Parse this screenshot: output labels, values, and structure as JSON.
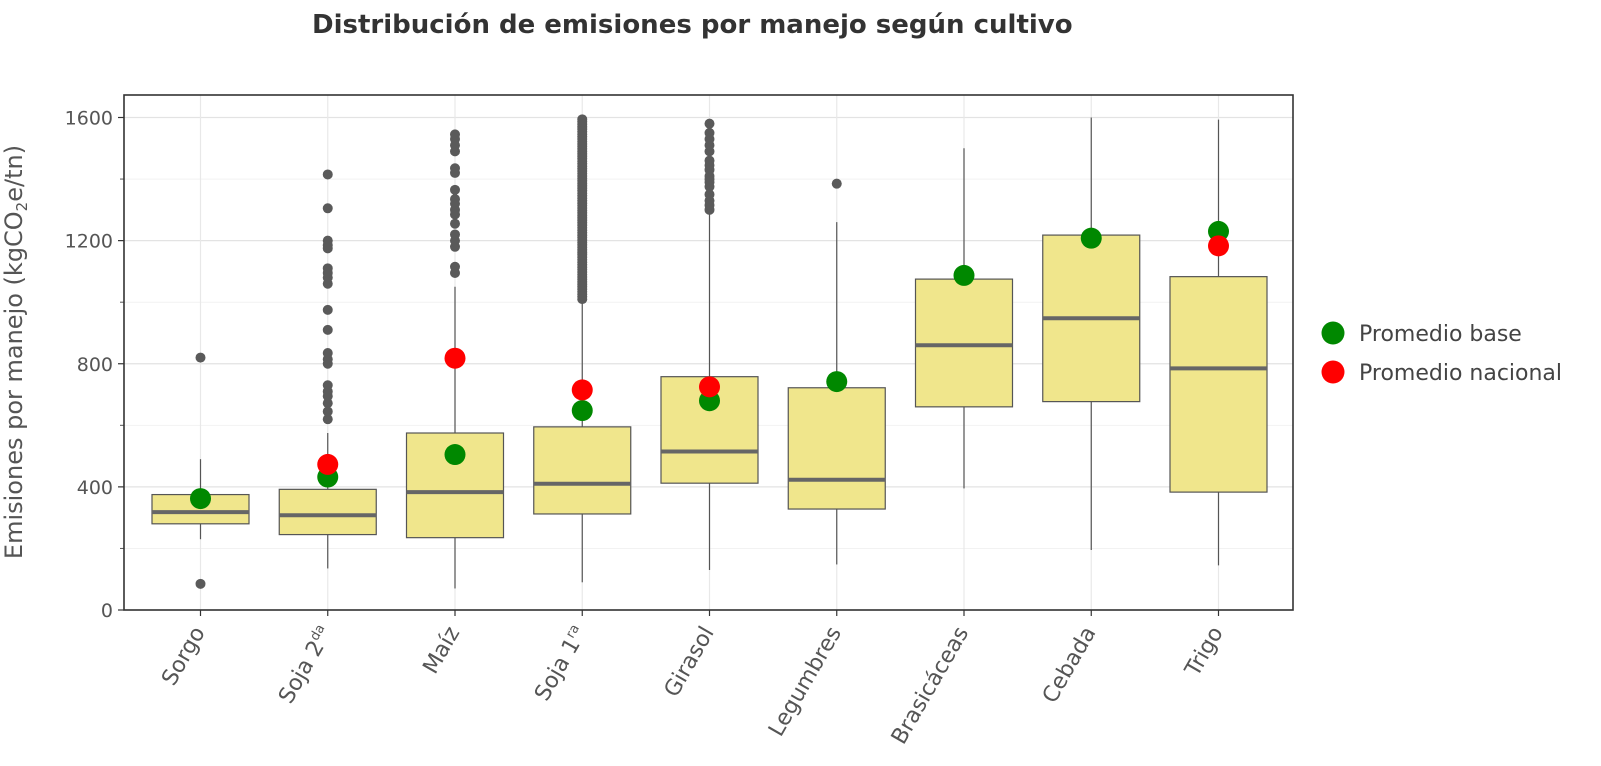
{
  "chart_data": {
    "type": "boxplot",
    "title": "Distribución de emisiones por manejo según cultivo",
    "xlabel": "",
    "ylabel": "Emisiones por manejo (kgCO2e/tn)",
    "ylabel_parts": {
      "pre": "Emisiones por manejo (kgCO",
      "sub": "2",
      "post": "e/tn)"
    },
    "ylim": [
      0,
      1600
    ],
    "yticks": [
      0,
      400,
      800,
      1200,
      1600
    ],
    "grid": true,
    "legend_position": "right",
    "categories": [
      {
        "name": "Sorgo",
        "base": "Sorgo",
        "sup": ""
      },
      {
        "name": "Soja 2da",
        "base": "Soja 2",
        "sup": "da"
      },
      {
        "name": "Maíz",
        "base": "Maíz",
        "sup": ""
      },
      {
        "name": "Soja 1ra",
        "base": "Soja 1",
        "sup": "ra"
      },
      {
        "name": "Girasol",
        "base": "Girasol",
        "sup": ""
      },
      {
        "name": "Legumbres",
        "base": "Legumbres",
        "sup": ""
      },
      {
        "name": "Brasicáceas",
        "base": "Brasicáceas",
        "sup": ""
      },
      {
        "name": "Cebada",
        "base": "Cebada",
        "sup": ""
      },
      {
        "name": "Trigo",
        "base": "Trigo",
        "sup": ""
      }
    ],
    "boxes": [
      {
        "category": "Sorgo",
        "whisker_low": 230,
        "q1": 280,
        "median": 318,
        "q3": 375,
        "whisker_high": 490,
        "outliers": [
          820,
          85
        ]
      },
      {
        "category": "Soja 2da",
        "whisker_low": 135,
        "q1": 245,
        "median": 308,
        "q3": 392,
        "whisker_high": 575,
        "outliers": [
          620,
          645,
          672,
          695,
          710,
          730,
          800,
          815,
          835,
          910,
          975,
          1060,
          1080,
          1095,
          1110,
          1175,
          1185,
          1200,
          1305,
          1415
        ]
      },
      {
        "category": "Maíz",
        "whisker_low": 70,
        "q1": 235,
        "median": 383,
        "q3": 575,
        "whisker_high": 1050,
        "outliers": [
          1095,
          1115,
          1180,
          1200,
          1220,
          1255,
          1285,
          1300,
          1320,
          1335,
          1365,
          1420,
          1435,
          1490,
          1510,
          1530,
          1545
        ]
      },
      {
        "category": "Soja 1ra",
        "whisker_low": 90,
        "q1": 312,
        "median": 410,
        "q3": 595,
        "whisker_high": 1000,
        "outliers_range": [
          1010,
          1600
        ]
      },
      {
        "category": "Girasol",
        "whisker_low": 130,
        "q1": 412,
        "median": 515,
        "q3": 758,
        "whisker_high": 1290,
        "outliers": [
          1300,
          1315,
          1330,
          1350,
          1375,
          1390,
          1400,
          1410,
          1430,
          1445,
          1460,
          1490,
          1510,
          1530,
          1550,
          1580
        ]
      },
      {
        "category": "Legumbres",
        "whisker_low": 148,
        "q1": 328,
        "median": 423,
        "q3": 722,
        "whisker_high": 1260,
        "outliers": [
          1385
        ]
      },
      {
        "category": "Brasicáceas",
        "whisker_low": 395,
        "q1": 660,
        "median": 860,
        "q3": 1075,
        "whisker_high": 1500,
        "outliers": []
      },
      {
        "category": "Cebada",
        "whisker_low": 195,
        "q1": 677,
        "median": 948,
        "q3": 1218,
        "whisker_high": 1600,
        "outliers": []
      },
      {
        "category": "Trigo",
        "whisker_low": 145,
        "q1": 383,
        "median": 785,
        "q3": 1083,
        "whisker_high": 1593,
        "outliers": []
      }
    ],
    "series": [
      {
        "name": "Promedio base",
        "color": "#008800",
        "values": [
          362,
          432,
          505,
          648,
          680,
          742,
          1087,
          1208,
          1230
        ]
      },
      {
        "name": "Promedio nacional",
        "color": "#ff0000",
        "values": [
          null,
          473,
          818,
          715,
          725,
          null,
          null,
          null,
          1183
        ]
      }
    ],
    "box_fill": "#f0e68c",
    "box_stroke": "#555555",
    "median_color": "#666666",
    "outlier_color": "#5a5a5a"
  }
}
